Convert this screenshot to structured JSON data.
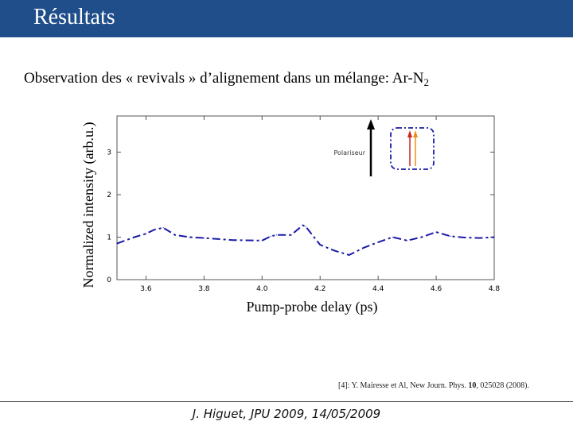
{
  "header": {
    "title": "Résultats",
    "color": "#1f4e8a"
  },
  "subtitle": {
    "text": "Observation des « revivals » d’alignement dans un mélange: Ar-N",
    "sub": "2"
  },
  "chart_data": {
    "type": "line",
    "title": "",
    "xlabel": "Pump-probe delay (ps)",
    "ylabel": "Normalized intensity (arb.u.)",
    "xlim": [
      3.5,
      4.8
    ],
    "ylim": [
      0,
      3.85
    ],
    "xticks": [
      "3.6",
      "3.8",
      "4.0",
      "4.2",
      "4.4",
      "4.6",
      "4.8"
    ],
    "yticks": [
      "0",
      "1",
      "2",
      "3"
    ],
    "grid": false,
    "series": [
      {
        "color": "#1a1aa8",
        "style": "dash-dot",
        "x": [
          3.5,
          3.56,
          3.6,
          3.63,
          3.66,
          3.7,
          3.75,
          3.8,
          3.9,
          4.0,
          4.03,
          4.05,
          4.1,
          4.14,
          4.15,
          4.2,
          4.25,
          4.3,
          4.35,
          4.4,
          4.45,
          4.5,
          4.55,
          4.6,
          4.65,
          4.7,
          4.75,
          4.8
        ],
        "y": [
          0.85,
          1.0,
          1.08,
          1.18,
          1.22,
          1.05,
          1.0,
          0.98,
          0.93,
          0.92,
          1.02,
          1.05,
          1.05,
          1.28,
          1.25,
          0.82,
          0.68,
          0.58,
          0.75,
          0.88,
          1.0,
          0.92,
          1.0,
          1.12,
          1.02,
          0.99,
          0.98,
          1.0
        ]
      }
    ],
    "inset": {
      "label": "Polariseur",
      "arrow_colors": [
        "#000000",
        "#cc2222",
        "#e8901a"
      ],
      "box_color": "#1a1aa8"
    }
  },
  "citation": {
    "prefix": "[4]: Y. Mairesse et Al, New Journ. Phys. ",
    "volume": "10",
    "suffix": ", 025028 (2008)."
  },
  "footer": {
    "text": "J. Higuet, JPU 2009, 14/05/2009"
  }
}
